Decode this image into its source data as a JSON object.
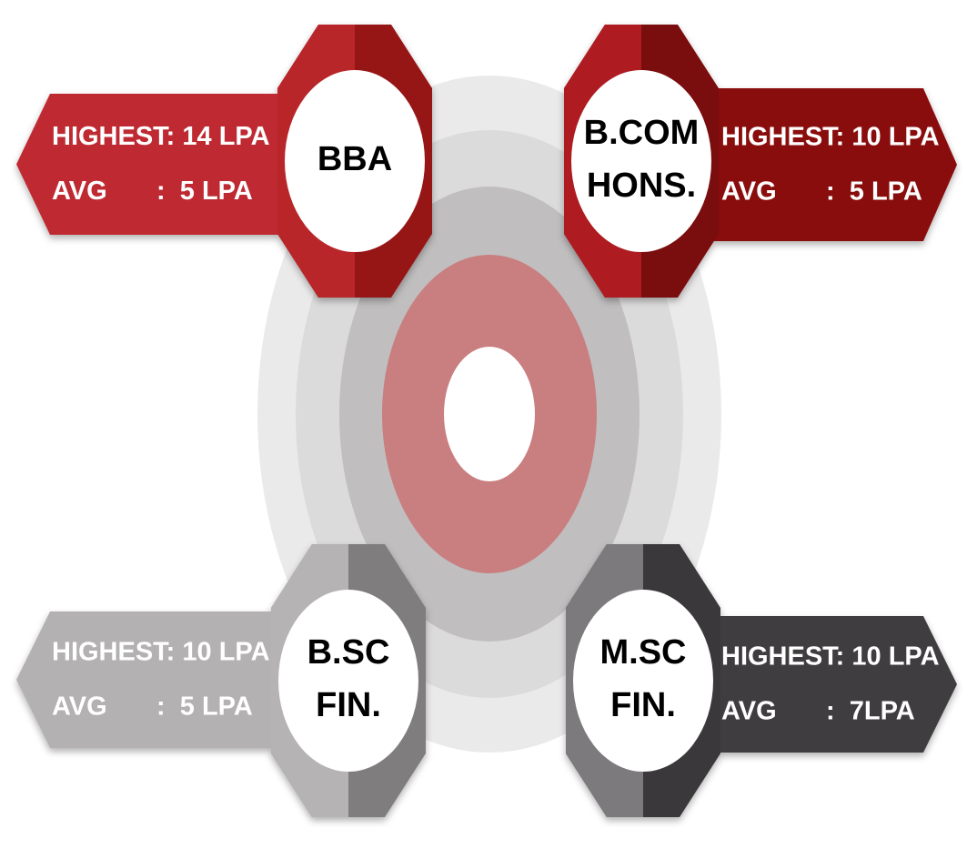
{
  "programs": [
    {
      "name": [
        "BBA"
      ],
      "highest": "HIGHEST: 14 LPA",
      "avg_label": "AVG",
      "avg_value": ":  5 LPA"
    },
    {
      "name": [
        "B.COM",
        "HONS."
      ],
      "highest": "HIGHEST: 10 LPA",
      "avg_label": "AVG",
      "avg_value": ":  5 LPA"
    },
    {
      "name": [
        "B.SC",
        "FIN."
      ],
      "highest": "HIGHEST: 10 LPA",
      "avg_label": "AVG",
      "avg_value": ":  5 LPA"
    },
    {
      "name": [
        "M.SC",
        "FIN."
      ],
      "highest": "HIGHEST: 10 LPA",
      "avg_label": "AVG",
      "avg_value": ":  7LPA"
    }
  ]
}
